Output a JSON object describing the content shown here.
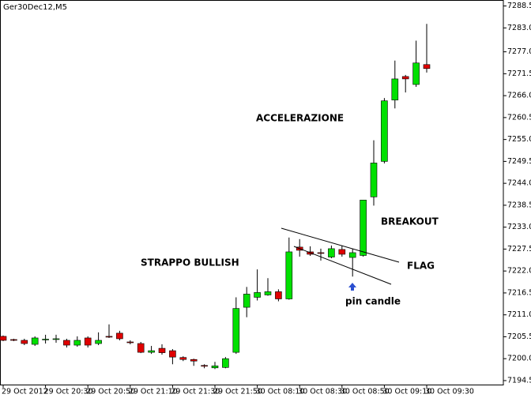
{
  "chart_data": {
    "type": "candlestick",
    "title": "Ger30Dec12,M5",
    "annotations": [
      "ACCELERAZIONE",
      "STRAPPO BULLISH",
      "BREAKOUT",
      "FLAG",
      "pin candle"
    ],
    "categories": [
      "29 Oct 2012",
      null,
      null,
      null,
      "29 Oct 20:30",
      null,
      null,
      null,
      "29 Oct 20:50",
      null,
      null,
      null,
      "29 Oct 21:10",
      null,
      null,
      null,
      "29 Oct 21:30",
      null,
      null,
      null,
      "29 Oct 21:50",
      null,
      null,
      null,
      "30 Oct 08:10",
      null,
      null,
      null,
      "30 Oct 08:30",
      null,
      null,
      null,
      "30 Oct 08:50",
      null,
      null,
      null,
      "30 Oct 09:10",
      null,
      null,
      null,
      "30 Oct 09:30"
    ],
    "open": [
      7205.6,
      7204.8,
      7204.6,
      7203.6,
      7204.8,
      7204.9,
      7204.6,
      7203.4,
      7205.2,
      7203.8,
      7205.6,
      7206.4,
      7204.2,
      7203.8,
      7201.6,
      7202.6,
      7202.0,
      7200.3,
      7199.8,
      7198.3,
      7197.7,
      7197.8,
      7201.6,
      7212.9,
      7215.4,
      7216.0,
      7216.8,
      7215.0,
      7228.0,
      7226.8,
      7226.6,
      7225.5,
      7227.4,
      7225.4,
      7225.9,
      7240.6,
      7249.5,
      7264.9,
      7270.8,
      7268.8,
      7273.8
    ],
    "high": [
      7205.8,
      7205.0,
      7205.0,
      7205.6,
      7206.0,
      7206.0,
      7205.0,
      7205.6,
      7205.6,
      7206.6,
      7208.6,
      7207.0,
      7204.6,
      7204.2,
      7203.2,
      7203.6,
      7202.4,
      7200.6,
      7200.0,
      7198.6,
      7199.2,
      7200.4,
      7215.4,
      7218.0,
      7222.4,
      7220.2,
      7217.4,
      7230.4,
      7230.0,
      7228.2,
      7227.6,
      7228.4,
      7228.4,
      7227.6,
      7239.8,
      7254.8,
      7265.4,
      7274.8,
      7271.2,
      7279.8,
      7284.0
    ],
    "low": [
      7204.4,
      7204.4,
      7203.4,
      7203.2,
      7203.8,
      7204.0,
      7202.8,
      7203.0,
      7202.8,
      7203.4,
      7205.2,
      7204.6,
      7203.6,
      7201.4,
      7201.2,
      7201.0,
      7198.6,
      7199.4,
      7198.2,
      7197.6,
      7197.4,
      7197.6,
      7201.2,
      7210.4,
      7214.6,
      7215.8,
      7214.4,
      7214.8,
      7225.6,
      7225.8,
      7224.6,
      7225.2,
      7225.6,
      7220.6,
      7225.6,
      7238.4,
      7249.0,
      7262.8,
      7266.8,
      7268.2,
      7271.8
    ],
    "close": [
      7204.6,
      7204.6,
      7203.8,
      7205.2,
      7204.9,
      7205.0,
      7203.4,
      7204.6,
      7203.4,
      7204.6,
      7205.4,
      7205.0,
      7204.0,
      7201.6,
      7202.0,
      7201.5,
      7200.4,
      7199.8,
      7199.4,
      7198.2,
      7198.2,
      7200.0,
      7212.6,
      7216.2,
      7216.6,
      7216.8,
      7215.0,
      7226.8,
      7227.2,
      7226.2,
      7226.4,
      7227.6,
      7226.2,
      7226.6,
      7239.8,
      7249.1,
      7264.7,
      7270.2,
      7270.2,
      7274.2,
      7272.8
    ],
    "up_color": "#00e000",
    "down_color": "#e00000",
    "ylim": [
      7193.5,
      7290
    ],
    "yticks": [
      {
        "value": 7288.5,
        "label": "7288.5"
      },
      {
        "value": 7283,
        "label": "7283.0"
      },
      {
        "value": 7277,
        "label": "7277.0"
      },
      {
        "value": 7271.5,
        "label": "7271.5"
      },
      {
        "value": 7266,
        "label": "7266.0"
      },
      {
        "value": 7260.5,
        "label": "7260.5"
      },
      {
        "value": 7255,
        "label": "7255.0"
      },
      {
        "value": 7249.5,
        "label": "7249.5"
      },
      {
        "value": 7244,
        "label": "7244.0"
      },
      {
        "value": 7238.5,
        "label": "7238.5"
      },
      {
        "value": 7233,
        "label": "7233.0"
      },
      {
        "value": 7227.5,
        "label": "7227.5"
      },
      {
        "value": 7222,
        "label": "7222.0"
      },
      {
        "value": 7216.5,
        "label": "7216.5"
      },
      {
        "value": 7211,
        "label": "7211.0"
      },
      {
        "value": 7205.5,
        "label": "7205.5"
      },
      {
        "value": 7200,
        "label": "7200.0"
      },
      {
        "value": 7194.5,
        "label": "7194.5"
      }
    ]
  }
}
